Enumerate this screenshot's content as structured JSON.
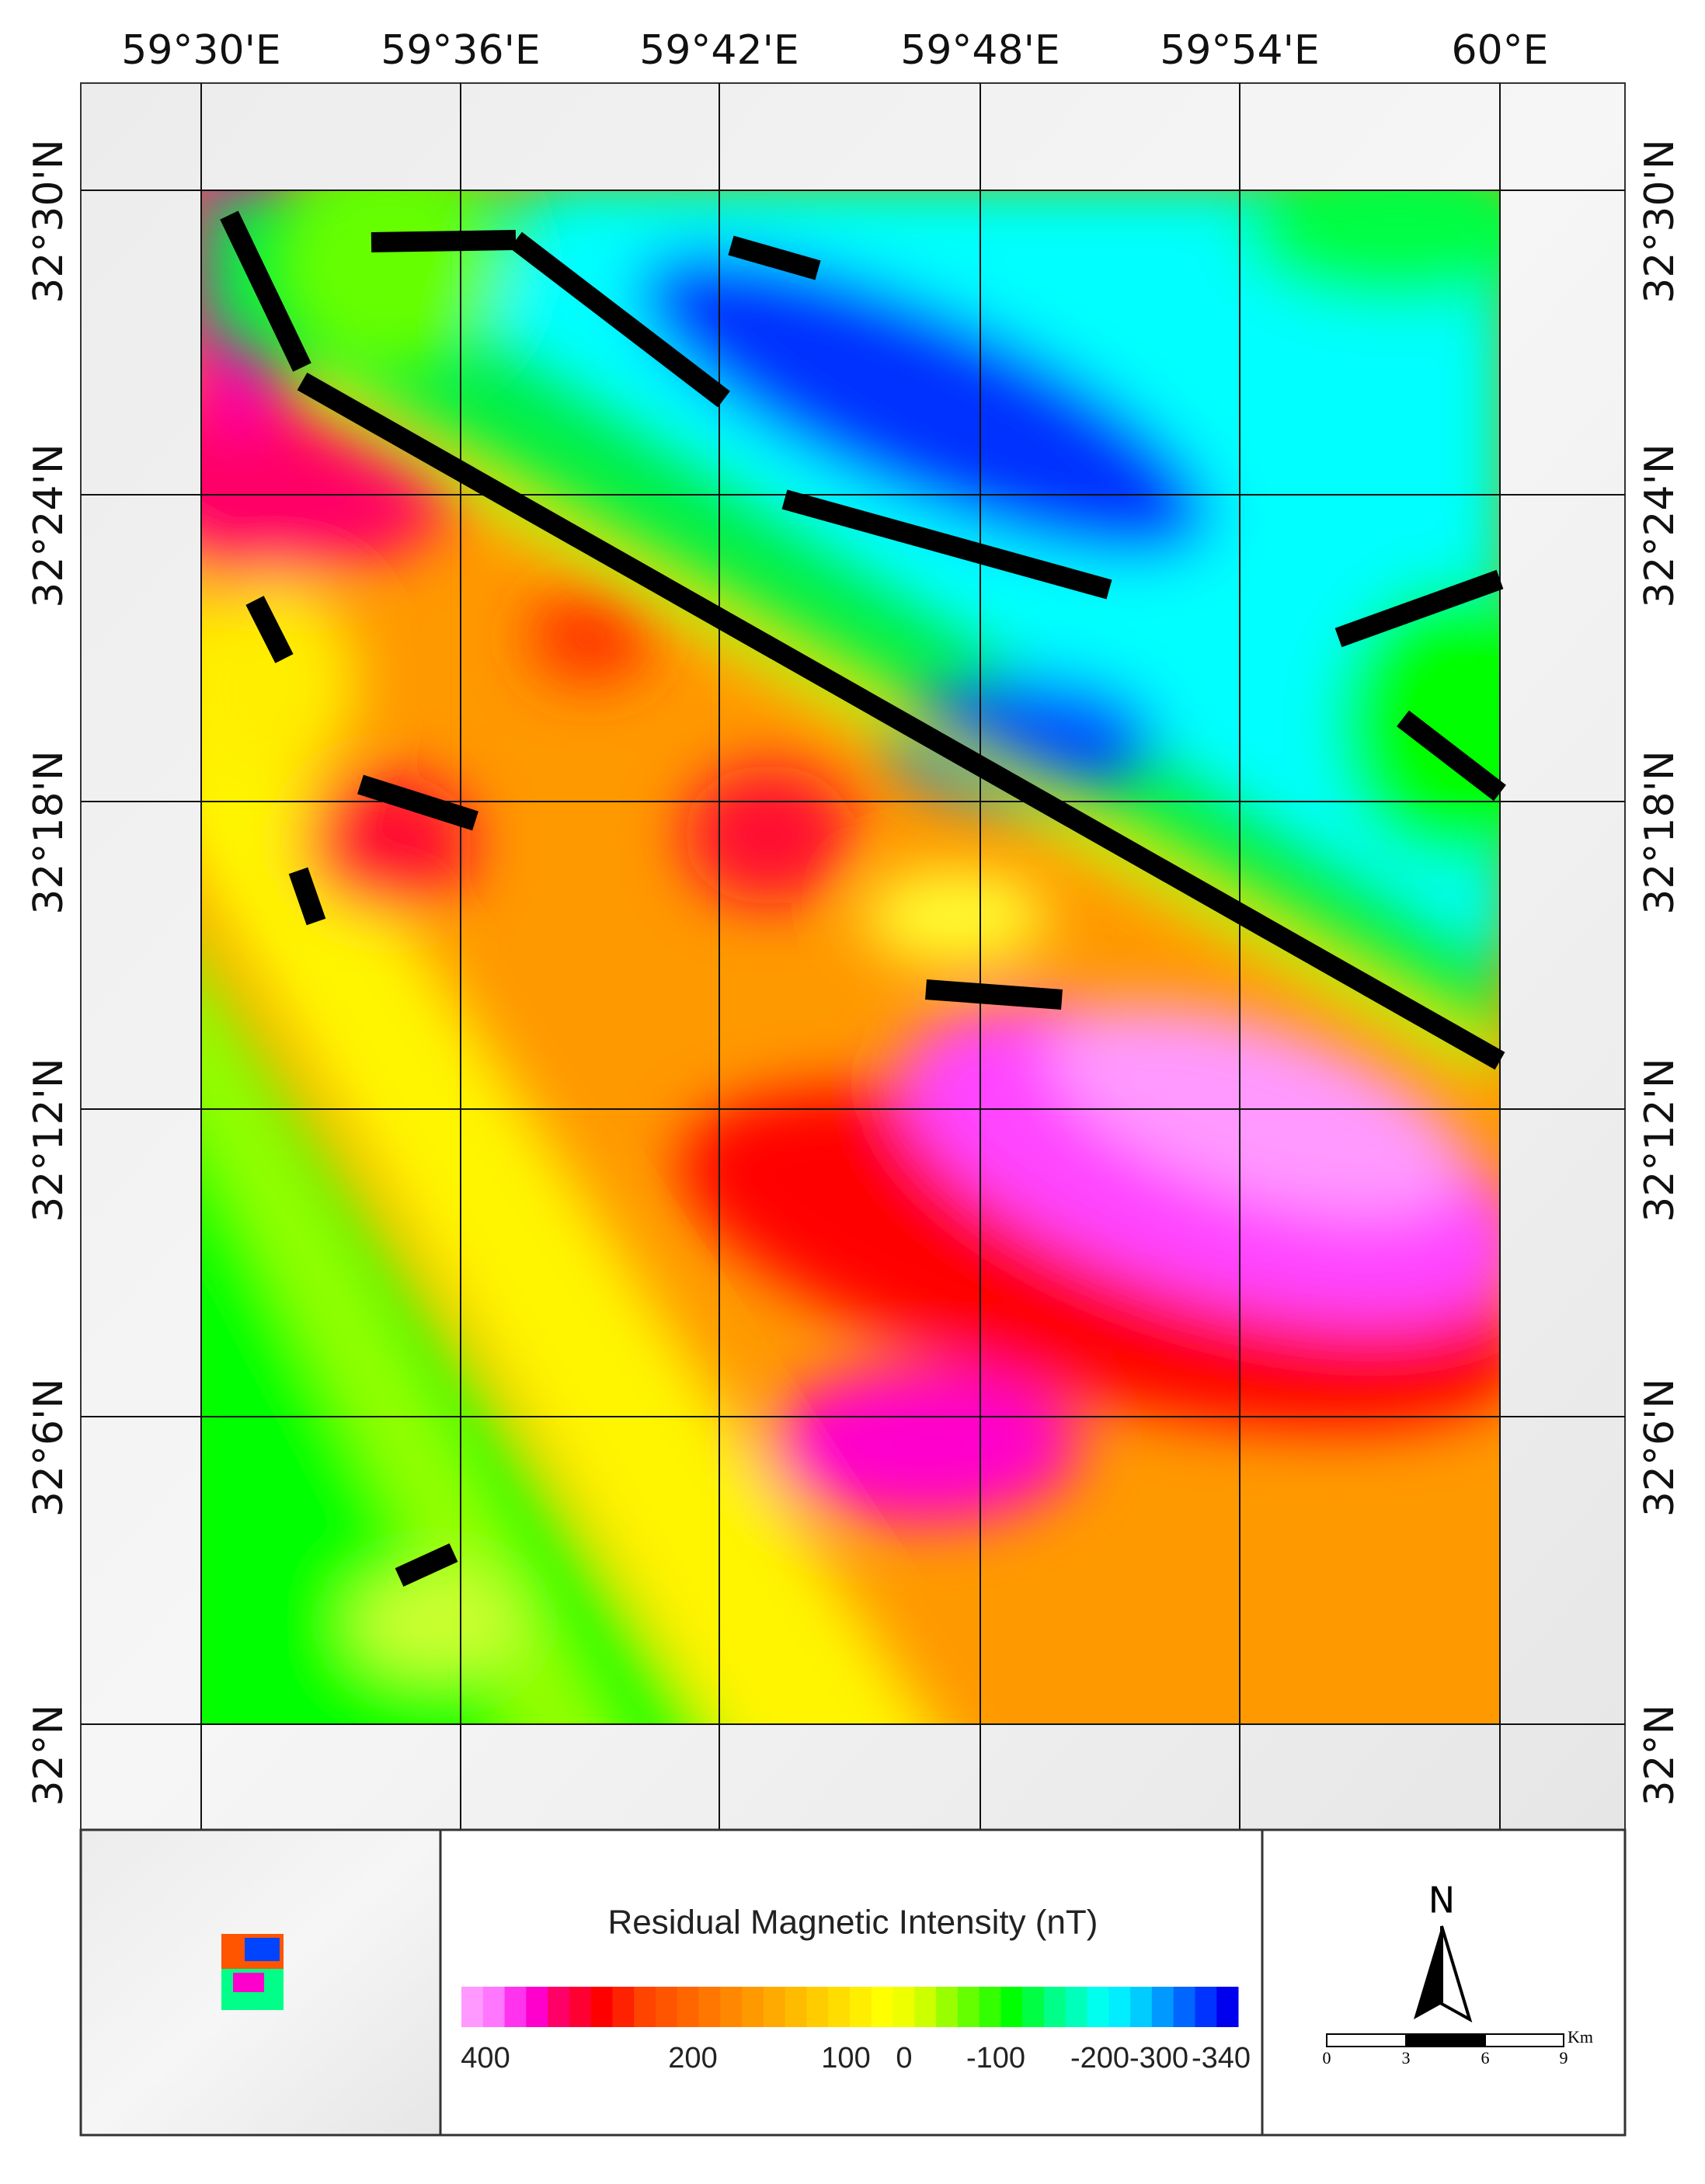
{
  "map": {
    "lon_labels": [
      "59°30'E",
      "59°36'E",
      "59°42'E",
      "59°48'E",
      "59°54'E",
      "60°E"
    ],
    "lat_labels": [
      "32°30'N",
      "32°24'N",
      "32°18'N",
      "32°12'N",
      "32°6'N",
      "32°N"
    ],
    "legend": {
      "title": "Residual Magnetic Intensity (nT)",
      "labels": [
        "400",
        "200",
        "100",
        "0",
        "-100",
        "-200",
        "-300",
        "-340"
      ],
      "colors": [
        "#ff99ff",
        "#ff77ff",
        "#ff33ee",
        "#ff00cc",
        "#ff0066",
        "#ff0033",
        "#ff0000",
        "#ff2200",
        "#ff4400",
        "#ff5500",
        "#ff6600",
        "#ff7700",
        "#ff8800",
        "#ff9900",
        "#ffaa00",
        "#ffbb00",
        "#ffcc00",
        "#ffdd00",
        "#ffee00",
        "#ffff00",
        "#eeff00",
        "#ccff00",
        "#99ff00",
        "#66ff00",
        "#33ff00",
        "#00ff00",
        "#00ff44",
        "#00ff88",
        "#00ffbb",
        "#00ffee",
        "#00eeff",
        "#00ccff",
        "#0099ff",
        "#0066ff",
        "#0033ff",
        "#0000ee"
      ]
    },
    "north": "N",
    "scale": {
      "labels": [
        "0",
        "3",
        "6",
        "9"
      ],
      "unit": "Km"
    }
  }
}
